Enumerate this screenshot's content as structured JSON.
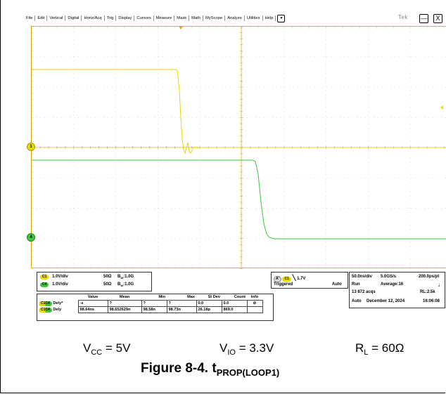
{
  "menu": [
    "File",
    "Edit",
    "Vertical",
    "Digital",
    "Horiz/Acq",
    "Trig",
    "Display",
    "Cursors",
    "Measure",
    "Mask",
    "Math",
    "MyScope",
    "Analyze",
    "Utilities",
    "Help"
  ],
  "menu_dropdown": "▼",
  "brand": "Tek",
  "window_buttons": {
    "minimize": "—",
    "close": "X"
  },
  "markers": {
    "ch1": "1",
    "ch4": "4"
  },
  "channels": [
    {
      "badge": "C1",
      "color": "#e8d800",
      "scale": "1.0V/div",
      "imp": "50Ω",
      "bw_label": "B",
      "bw_sub": "W",
      "bw_val": ":1.0G"
    },
    {
      "badge": "C4",
      "color": "#3ec43e",
      "scale": "1.0V/div",
      "imp": "50Ω",
      "bw_label": "B",
      "bw_sub": "W",
      "bw_val": ":1.0G"
    }
  ],
  "trigger": {
    "label": "A'",
    "src": "C1",
    "level": "1.7V",
    "state": "Triggered",
    "mode": "Auto"
  },
  "status": {
    "timebase": "50.0ns/div",
    "rate": "5.0GS/s",
    "res": "200.0ps/pt",
    "run": "Run",
    "avg": "Average:16",
    "acqs": "13 872 acqs",
    "rl": "RL:2.5k",
    "auto": "Auto",
    "date": "December 12, 2024",
    "time": "16:06:08"
  },
  "measurements": {
    "headers": [
      "Value",
      "Mean",
      "Min",
      "Max",
      "St Dev",
      "Count",
      "Info"
    ],
    "rows": [
      {
        "badge": "C1C4",
        "name": "Dely*",
        "value": "-s",
        "mean": "?",
        "min": "?",
        "max": "?",
        "stdev": "0.0",
        "count": "0.0",
        "info": "⊘"
      },
      {
        "badge": "C1C4",
        "name": "Dely",
        "value": "98.64ns",
        "mean": "98.652629n",
        "min": "98.58n",
        "max": "98.73n",
        "stdev": "26.18p",
        "count": "869.0",
        "info": ""
      }
    ]
  },
  "captions": {
    "vcc_main": "V",
    "vcc_sub": "CC",
    "vcc_val": " = 5V",
    "vio_main": "V",
    "vio_sub": "IO",
    "vio_val": " = 3.3V",
    "rl_main": "R",
    "rl_sub": "L",
    "rl_val": " = 60Ω",
    "figure_main": "Figure 8-4. t",
    "figure_sub": "PROP(LOOP1)"
  },
  "colors": {
    "ch1": "#e8d800",
    "ch4": "#3ec43e",
    "grid_axis": "#e6b800"
  }
}
